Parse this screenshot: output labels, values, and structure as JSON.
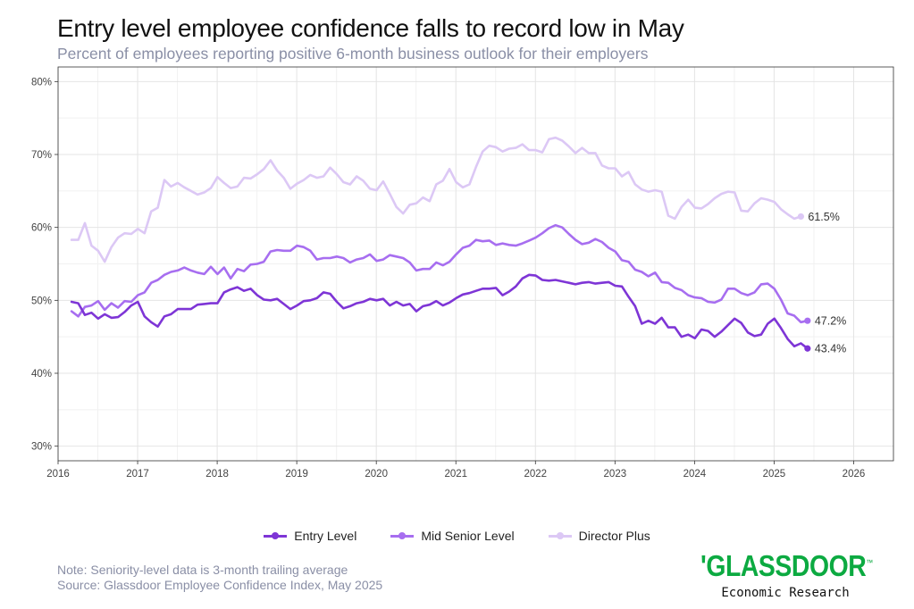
{
  "title": "Entry level employee confidence falls to record low in May",
  "subtitle": "Percent of employees reporting positive 6-month business outlook for their employers",
  "chart_data": {
    "type": "line",
    "title": "Entry level employee confidence falls to record low in May",
    "xlabel": "",
    "ylabel": "",
    "xlim": [
      2016,
      2026.5
    ],
    "ylim": [
      28,
      82
    ],
    "xticks": [
      2016,
      2017,
      2018,
      2019,
      2020,
      2021,
      2022,
      2023,
      2024,
      2025,
      2026
    ],
    "yticks": [
      30,
      40,
      50,
      60,
      70,
      80
    ],
    "ytick_suffix": "%",
    "grid": true,
    "legend_position": "bottom",
    "x_start": 2016.17,
    "x_step_months": 1,
    "series": [
      {
        "name": "Entry Level",
        "color": "#7e35d6",
        "end_label": "43.4%",
        "values": [
          49.8,
          49.6,
          48.0,
          48.3,
          47.5,
          48.1,
          47.6,
          47.7,
          48.4,
          49.3,
          49.8,
          47.8,
          47.0,
          46.4,
          47.8,
          48.1,
          48.8,
          48.8,
          48.8,
          49.4,
          49.5,
          49.6,
          49.6,
          51.1,
          51.5,
          51.8,
          51.3,
          51.6,
          50.7,
          50.1,
          50.0,
          50.2,
          49.5,
          48.8,
          49.3,
          49.9,
          50.0,
          50.3,
          51.1,
          50.9,
          49.8,
          48.9,
          49.2,
          49.6,
          49.8,
          50.2,
          50.0,
          50.2,
          49.3,
          49.8,
          49.3,
          49.5,
          48.5,
          49.2,
          49.4,
          49.9,
          49.3,
          49.7,
          50.3,
          50.8,
          51.0,
          51.3,
          51.6,
          51.6,
          51.7,
          50.7,
          51.2,
          51.9,
          53.0,
          53.5,
          53.4,
          52.8,
          52.7,
          52.8,
          52.6,
          52.4,
          52.2,
          52.4,
          52.5,
          52.3,
          52.4,
          52.5,
          52.0,
          51.9,
          50.5,
          49.2,
          46.8,
          47.2,
          46.8,
          47.6,
          46.3,
          46.3,
          45.0,
          45.3,
          44.8,
          46.0,
          45.8,
          45.0,
          45.7,
          46.6,
          47.5,
          46.9,
          45.6,
          45.1,
          45.3,
          46.8,
          47.5,
          46.2,
          44.7,
          43.7,
          44.1,
          43.4
        ]
      },
      {
        "name": "Mid Senior Level",
        "color": "#a76ef0",
        "end_label": "47.2%",
        "values": [
          48.5,
          47.8,
          49.1,
          49.3,
          49.9,
          48.7,
          49.6,
          49.0,
          49.9,
          49.8,
          50.7,
          51.1,
          52.4,
          52.8,
          53.5,
          53.9,
          54.1,
          54.5,
          54.1,
          53.8,
          53.6,
          54.6,
          53.6,
          54.5,
          53.0,
          54.3,
          54.0,
          54.9,
          55.0,
          55.3,
          56.7,
          56.9,
          56.8,
          56.8,
          57.5,
          57.3,
          56.8,
          55.6,
          55.8,
          55.8,
          56.0,
          55.8,
          55.2,
          55.6,
          55.8,
          56.3,
          55.4,
          55.6,
          56.2,
          56.0,
          55.8,
          55.2,
          54.1,
          54.3,
          54.3,
          55.2,
          54.8,
          55.3,
          56.3,
          57.2,
          57.5,
          58.3,
          58.1,
          58.2,
          57.6,
          57.8,
          57.6,
          57.5,
          57.8,
          58.2,
          58.6,
          59.2,
          59.9,
          60.3,
          60.0,
          59.1,
          58.3,
          57.7,
          57.9,
          58.4,
          58.0,
          57.2,
          56.7,
          55.5,
          55.3,
          54.2,
          53.9,
          53.3,
          53.8,
          52.5,
          52.4,
          51.7,
          51.4,
          50.7,
          50.4,
          50.3,
          49.8,
          49.7,
          50.1,
          51.6,
          51.6,
          51.0,
          50.7,
          51.1,
          52.2,
          52.3,
          51.6,
          50.1,
          48.2,
          47.9,
          47.0,
          47.2
        ]
      },
      {
        "name": "Director Plus",
        "color": "#dcc8f5",
        "end_label": "61.5%",
        "values": [
          58.3,
          58.3,
          60.6,
          57.5,
          56.8,
          55.3,
          57.3,
          58.6,
          59.2,
          59.1,
          59.8,
          59.2,
          62.2,
          62.7,
          66.5,
          65.6,
          66.1,
          65.5,
          65.0,
          64.5,
          64.8,
          65.4,
          66.9,
          66.1,
          65.4,
          65.6,
          66.8,
          66.7,
          67.3,
          68.0,
          69.2,
          67.8,
          66.8,
          65.3,
          66.0,
          66.5,
          67.2,
          66.8,
          67.0,
          68.2,
          67.3,
          66.2,
          65.9,
          67.0,
          66.4,
          65.3,
          65.1,
          66.3,
          64.6,
          62.8,
          61.9,
          63.1,
          63.3,
          64.1,
          63.6,
          65.9,
          66.4,
          68.0,
          66.2,
          65.5,
          65.9,
          68.3,
          70.4,
          71.2,
          71.0,
          70.4,
          70.8,
          70.9,
          71.4,
          70.6,
          70.6,
          70.3,
          72.1,
          72.3,
          71.9,
          71.1,
          70.2,
          70.9,
          70.2,
          70.2,
          68.5,
          68.1,
          68.1,
          67.0,
          67.6,
          65.9,
          65.2,
          64.9,
          65.1,
          64.9,
          61.6,
          61.2,
          62.8,
          63.8,
          62.7,
          62.6,
          63.2,
          64.0,
          64.6,
          64.9,
          64.8,
          62.3,
          62.2,
          63.3,
          64.0,
          63.8,
          63.5,
          62.5,
          61.8,
          61.2,
          61.5
        ]
      }
    ]
  },
  "legend": {
    "items": [
      {
        "label": "Entry Level",
        "color": "#7e35d6"
      },
      {
        "label": "Mid Senior Level",
        "color": "#a76ef0"
      },
      {
        "label": "Director Plus",
        "color": "#dcc8f5"
      }
    ]
  },
  "notes": {
    "line1": "Note: Seniority-level data is 3-month trailing average",
    "line2": "Source: Glassdoor Employee Confidence Index, May 2025"
  },
  "brand": {
    "logo_text": "'GLASSDOOR",
    "trademark": "™",
    "tagline": "Economic Research",
    "color": "#0caa41"
  }
}
